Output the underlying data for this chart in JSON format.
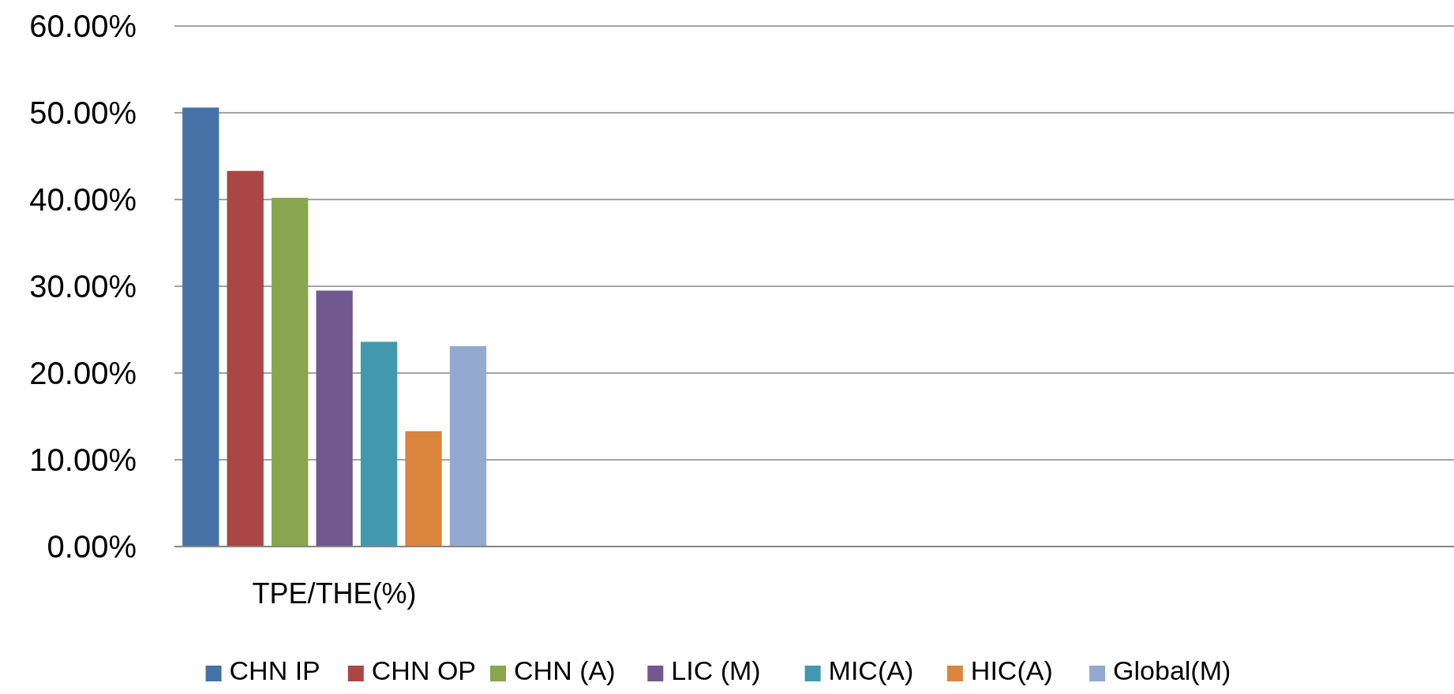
{
  "chart_data": {
    "type": "bar",
    "categories": [
      "TPE/THE(%)",
      null,
      null,
      null
    ],
    "series": [
      {
        "name": "CHN IP",
        "color": "#4572a7",
        "values": [
          50.6,
          null,
          null,
          null
        ]
      },
      {
        "name": "CHN OP",
        "color": "#aa4643",
        "values": [
          43.3,
          null,
          null,
          null
        ]
      },
      {
        "name": "CHN (A)",
        "color": "#89a54e",
        "values": [
          40.2,
          null,
          null,
          null
        ]
      },
      {
        "name": "LIC (M)",
        "color": "#71588f",
        "values": [
          29.5,
          null,
          null,
          null
        ]
      },
      {
        "name": "MIC(A)",
        "color": "#4198af",
        "values": [
          23.6,
          null,
          null,
          null
        ]
      },
      {
        "name": "HIC(A)",
        "color": "#db843d",
        "values": [
          13.3,
          null,
          null,
          null
        ]
      },
      {
        "name": "Global(M)",
        "color": "#93a9cf",
        "values": [
          23.1,
          null,
          null,
          null
        ]
      }
    ],
    "ylim": [
      0,
      60
    ],
    "yticks": [
      {
        "value": 0,
        "label": "0.00%"
      },
      {
        "value": 10,
        "label": "10.00%"
      },
      {
        "value": 20,
        "label": "20.00%"
      },
      {
        "value": 30,
        "label": "30.00%"
      },
      {
        "value": 40,
        "label": "40.00%"
      },
      {
        "value": 50,
        "label": "50.00%"
      },
      {
        "value": 60,
        "label": "60.00%"
      }
    ],
    "grid": "y",
    "legend": "bottom"
  }
}
